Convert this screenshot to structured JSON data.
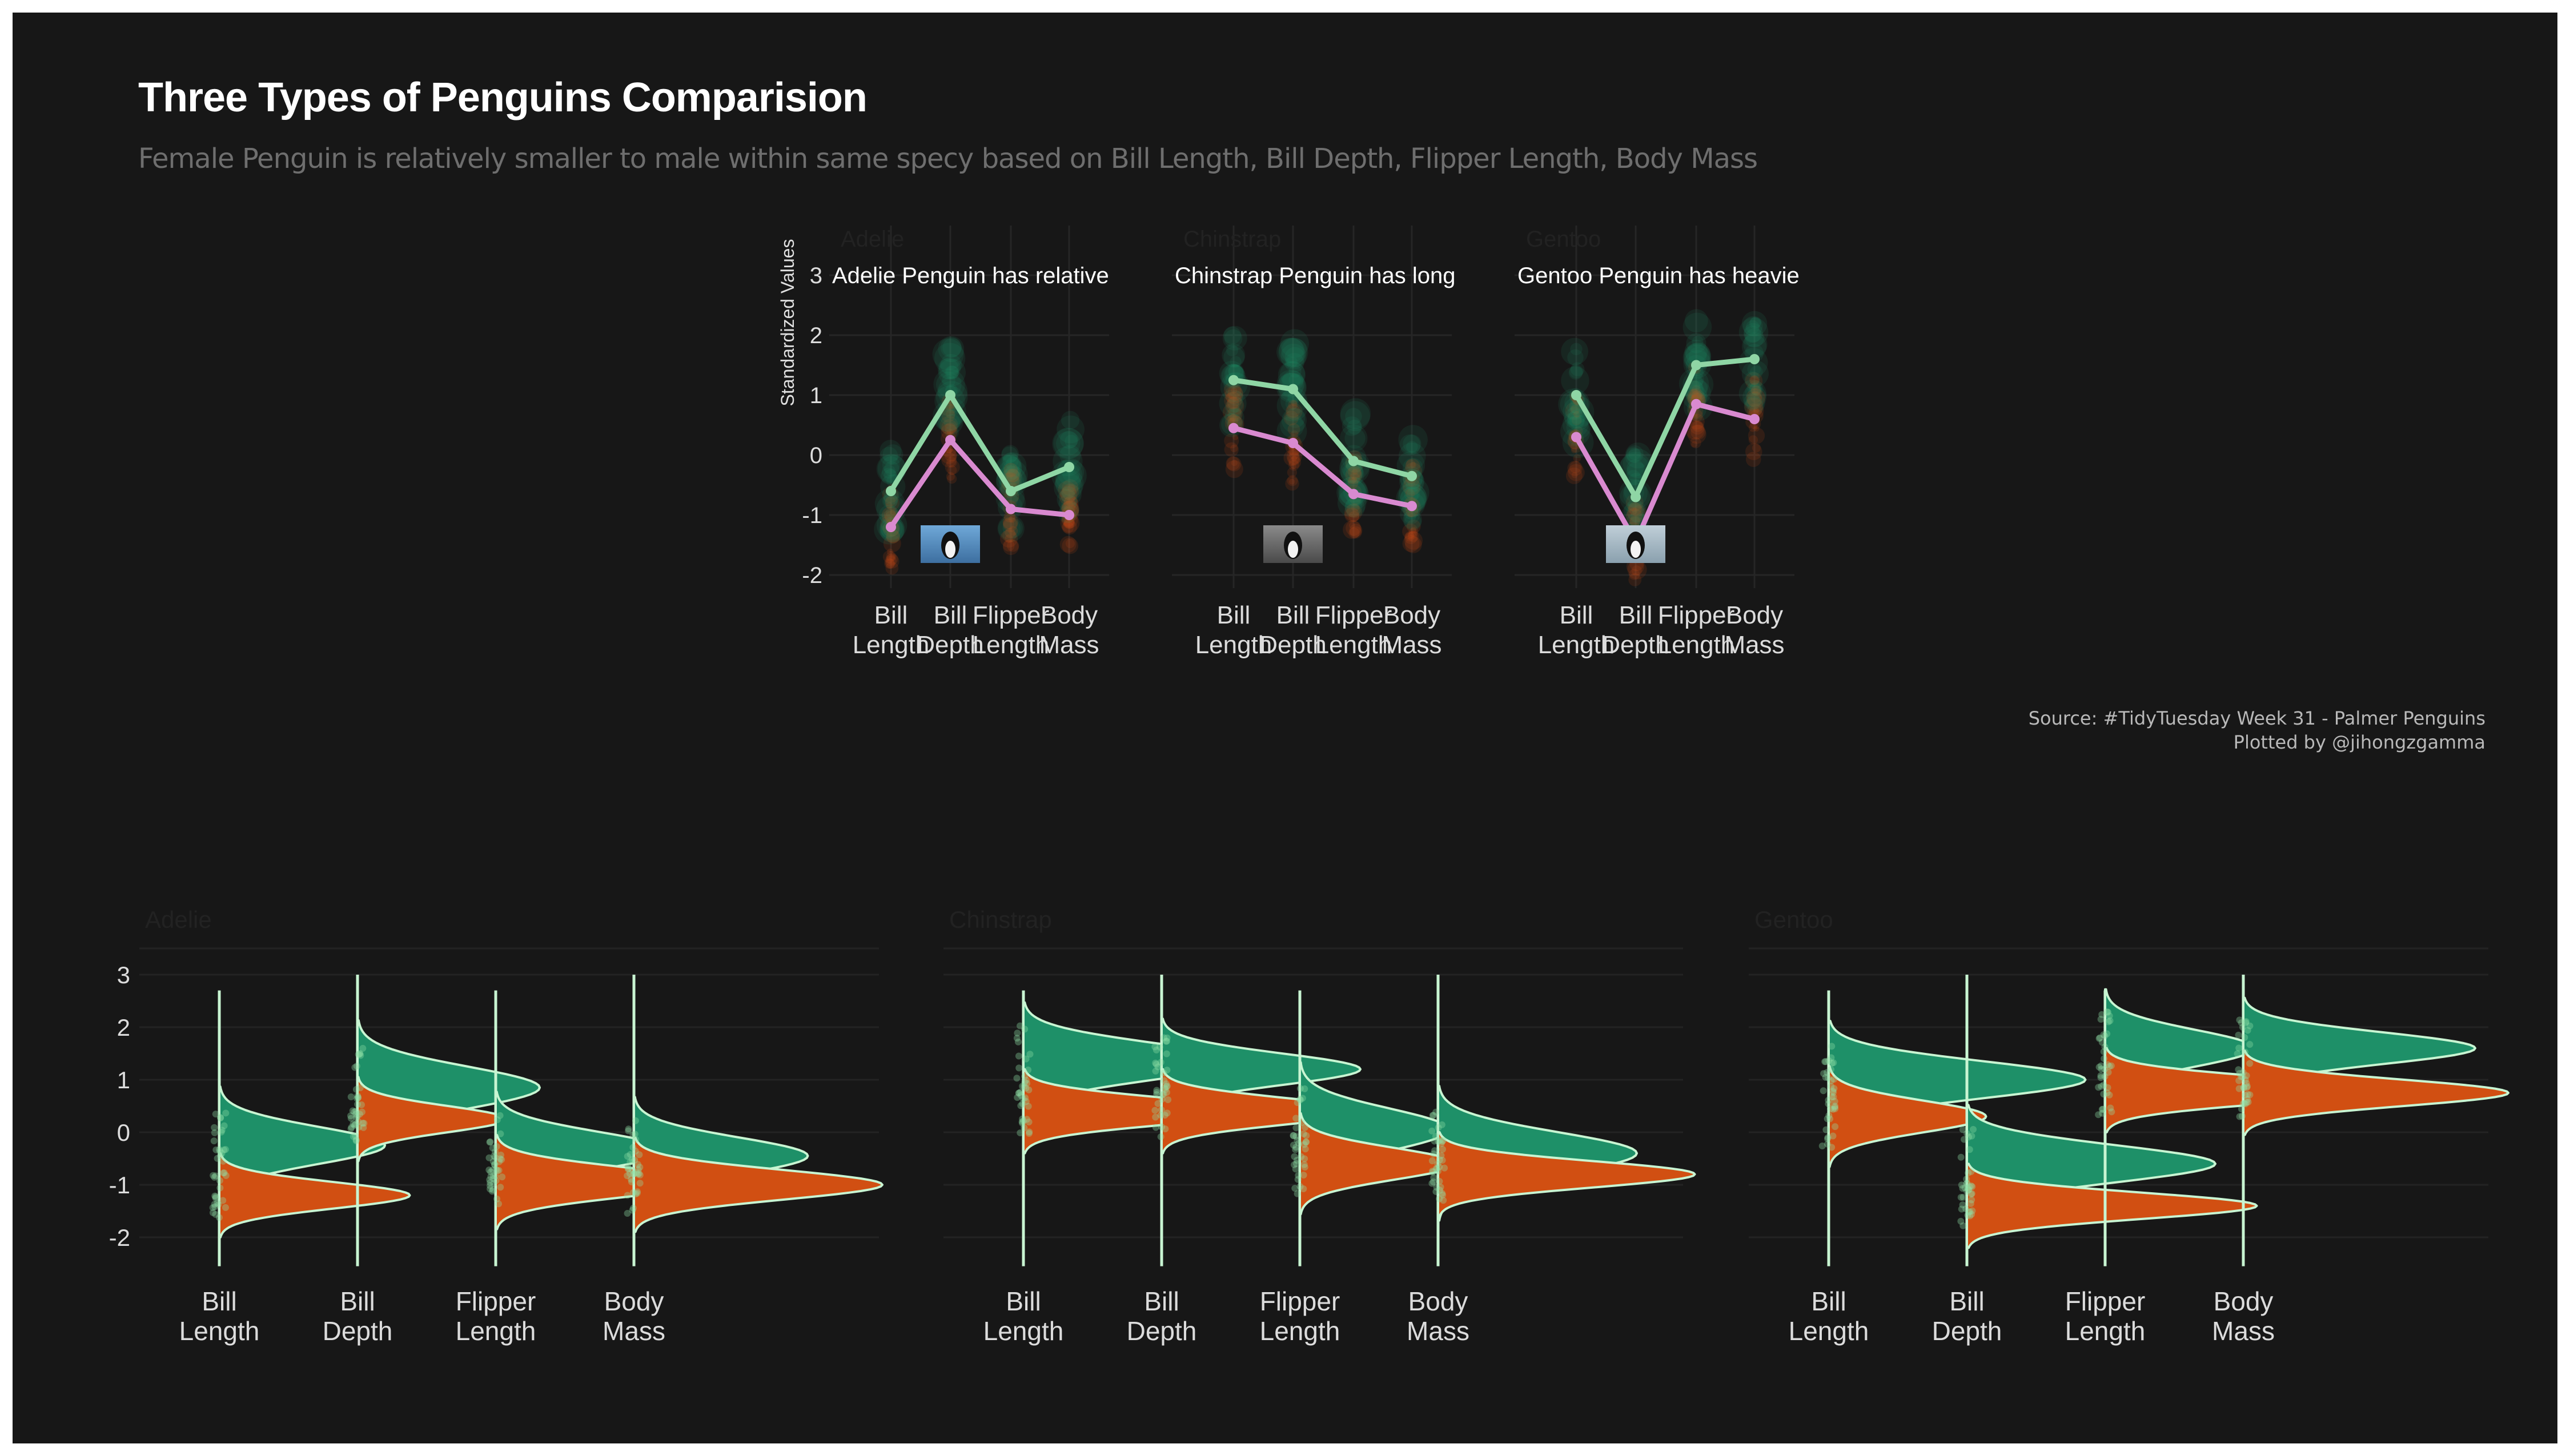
{
  "title": "Three Types of Penguins Comparision",
  "subtitle": "Female Penguin is relatively smaller to male within same specy based on Bill Length, Bill Depth, Flipper Length, Body Mass",
  "caption": {
    "line1": "Source: #TidyTuesday Week 31 - Palmer Penguins",
    "line2": "Plotted by @jihongzgamma"
  },
  "colors": {
    "background": "#171717",
    "male": "#1e9068",
    "female": "#d14f12",
    "male_line": "#8fd6a5",
    "female_line": "#d98ad0",
    "outline": "#c8f5d2"
  },
  "chart_data": [
    {
      "type": "line",
      "panels": [
        "Adelie",
        "Chinstrap",
        "Gentoo"
      ],
      "panel_labels": [
        "Adelie Penguin has relative",
        "Chinstrap Penguin has long",
        "Gentoo Penguin has heavie"
      ],
      "ylabel": "Standardized Values",
      "ylim": [
        -2.2,
        3.0
      ],
      "yticks": [
        -2,
        -1,
        0,
        1,
        2,
        3
      ],
      "categories": [
        "Bill\nLength",
        "Bill\nDepth",
        "Flipper\nLength",
        "Body\nMass"
      ],
      "series": [
        {
          "name": "male",
          "values": {
            "Adelie": [
              -0.6,
              1.0,
              -0.6,
              -0.2
            ],
            "Chinstrap": [
              1.25,
              1.1,
              -0.1,
              -0.35
            ],
            "Gentoo": [
              1.0,
              -0.7,
              1.5,
              1.6
            ]
          }
        },
        {
          "name": "female",
          "values": {
            "Adelie": [
              -1.2,
              0.25,
              -0.9,
              -1.0
            ],
            "Chinstrap": [
              0.45,
              0.2,
              -0.65,
              -0.85
            ],
            "Gentoo": [
              0.3,
              -1.45,
              0.85,
              0.6
            ]
          }
        }
      ],
      "grid": true,
      "legend": "none"
    },
    {
      "type": "area",
      "panels": [
        "Adelie",
        "Chinstrap",
        "Gentoo"
      ],
      "ylim": [
        -2.5,
        3.2
      ],
      "yticks": [
        -2,
        -1,
        0,
        1,
        2,
        3
      ],
      "categories": [
        "Bill\nLength",
        "Bill\nDepth",
        "Flipper\nLength",
        "Body\nMass"
      ],
      "series_names": [
        "male",
        "female"
      ],
      "distributions": {
        "Adelie": [
          {
            "male": {
              "mean": -0.25,
              "sd": 0.35,
              "peak": 1.0
            },
            "female": {
              "mean": -1.2,
              "sd": 0.25,
              "peak": 1.15
            }
          },
          {
            "male": {
              "mean": 0.85,
              "sd": 0.4,
              "peak": 1.1
            },
            "female": {
              "mean": 0.25,
              "sd": 0.25,
              "peak": 0.9
            }
          },
          {
            "male": {
              "mean": -0.35,
              "sd": 0.35,
              "peak": 1.05
            },
            "female": {
              "mean": -0.95,
              "sd": 0.28,
              "peak": 1.3
            }
          },
          {
            "male": {
              "mean": -0.45,
              "sd": 0.35,
              "peak": 1.05
            },
            "female": {
              "mean": -1.0,
              "sd": 0.28,
              "peak": 1.5
            }
          }
        ],
        "Chinstrap": [
          {
            "male": {
              "mean": 1.35,
              "sd": 0.35,
              "peak": 1.3
            },
            "female": {
              "mean": 0.4,
              "sd": 0.25,
              "peak": 1.45
            }
          },
          {
            "male": {
              "mean": 1.2,
              "sd": 0.3,
              "peak": 1.2
            },
            "female": {
              "mean": 0.4,
              "sd": 0.25,
              "peak": 1.25
            }
          },
          {
            "male": {
              "mean": 0.05,
              "sd": 0.4,
              "peak": 0.9
            },
            "female": {
              "mean": -0.6,
              "sd": 0.3,
              "peak": 0.95
            }
          },
          {
            "male": {
              "mean": -0.4,
              "sd": 0.4,
              "peak": 1.2
            },
            "female": {
              "mean": -0.8,
              "sd": 0.25,
              "peak": 1.55
            }
          }
        ],
        "Gentoo": [
          {
            "male": {
              "mean": 1.0,
              "sd": 0.35,
              "peak": 1.55
            },
            "female": {
              "mean": 0.3,
              "sd": 0.3,
              "peak": 0.95
            }
          },
          {
            "male": {
              "mean": -0.6,
              "sd": 0.35,
              "peak": 1.5
            },
            "female": {
              "mean": -1.4,
              "sd": 0.25,
              "peak": 1.75
            }
          },
          {
            "male": {
              "mean": 1.6,
              "sd": 0.35,
              "peak": 0.9
            },
            "female": {
              "mean": 0.8,
              "sd": 0.25,
              "peak": 1.65
            }
          },
          {
            "male": {
              "mean": 1.6,
              "sd": 0.3,
              "peak": 1.4
            },
            "female": {
              "mean": 0.75,
              "sd": 0.25,
              "peak": 1.6
            }
          }
        ]
      },
      "grid": true,
      "legend": "none"
    }
  ]
}
